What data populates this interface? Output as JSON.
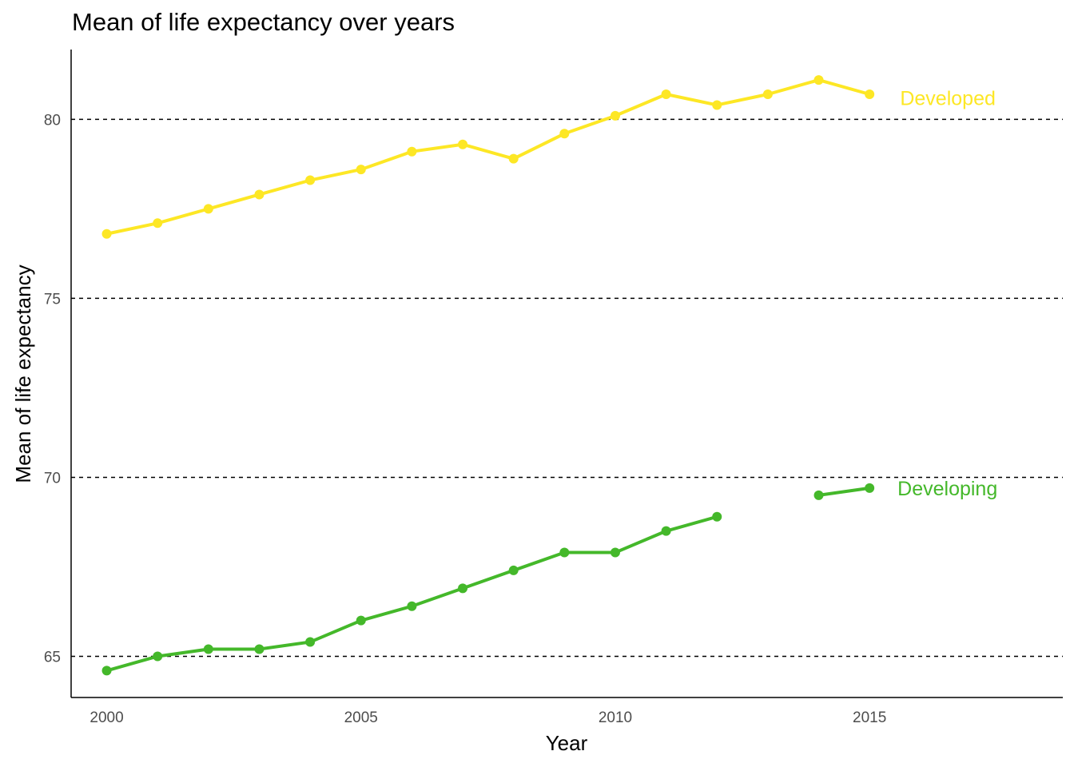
{
  "chart_data": {
    "type": "line",
    "title": "Mean of life expectancy over years",
    "xlabel": "Year",
    "ylabel": "Mean of life expectancy",
    "xlim": [
      1999.3,
      2018.8
    ],
    "ylim": [
      63.85,
      81.95
    ],
    "x_ticks": [
      2000,
      2005,
      2010,
      2015
    ],
    "y_ticks": [
      65,
      70,
      75,
      80
    ],
    "grid": "horizontal dashed at y ticks",
    "legend": "direct labels at line ends",
    "series": [
      {
        "name": "Developed",
        "color": "#FDE725",
        "label_at": [
          2015.6,
          80.6
        ],
        "points": [
          [
            2000,
            76.8
          ],
          [
            2001,
            77.1
          ],
          [
            2002,
            77.5
          ],
          [
            2003,
            77.9
          ],
          [
            2004,
            78.3
          ],
          [
            2005,
            78.6
          ],
          [
            2006,
            79.1
          ],
          [
            2007,
            79.3
          ],
          [
            2008,
            78.9
          ],
          [
            2009,
            79.6
          ],
          [
            2010,
            80.1
          ],
          [
            2011,
            80.7
          ],
          [
            2012,
            80.4
          ],
          [
            2013,
            80.7
          ],
          [
            2014,
            81.1
          ],
          [
            2015,
            80.7
          ]
        ]
      },
      {
        "name": "Developing",
        "color": "#44B82A",
        "label_at": [
          2015.55,
          69.7
        ],
        "points": [
          [
            2000,
            64.6
          ],
          [
            2001,
            65.0
          ],
          [
            2002,
            65.2
          ],
          [
            2003,
            65.2
          ],
          [
            2004,
            65.4
          ],
          [
            2005,
            66.0
          ],
          [
            2006,
            66.4
          ],
          [
            2007,
            66.9
          ],
          [
            2008,
            67.4
          ],
          [
            2009,
            67.9
          ],
          [
            2010,
            67.9
          ],
          [
            2011,
            68.5
          ],
          [
            2012,
            68.9
          ],
          [
            2013,
            null
          ],
          [
            2014,
            69.5
          ],
          [
            2015,
            69.7
          ]
        ]
      }
    ]
  }
}
